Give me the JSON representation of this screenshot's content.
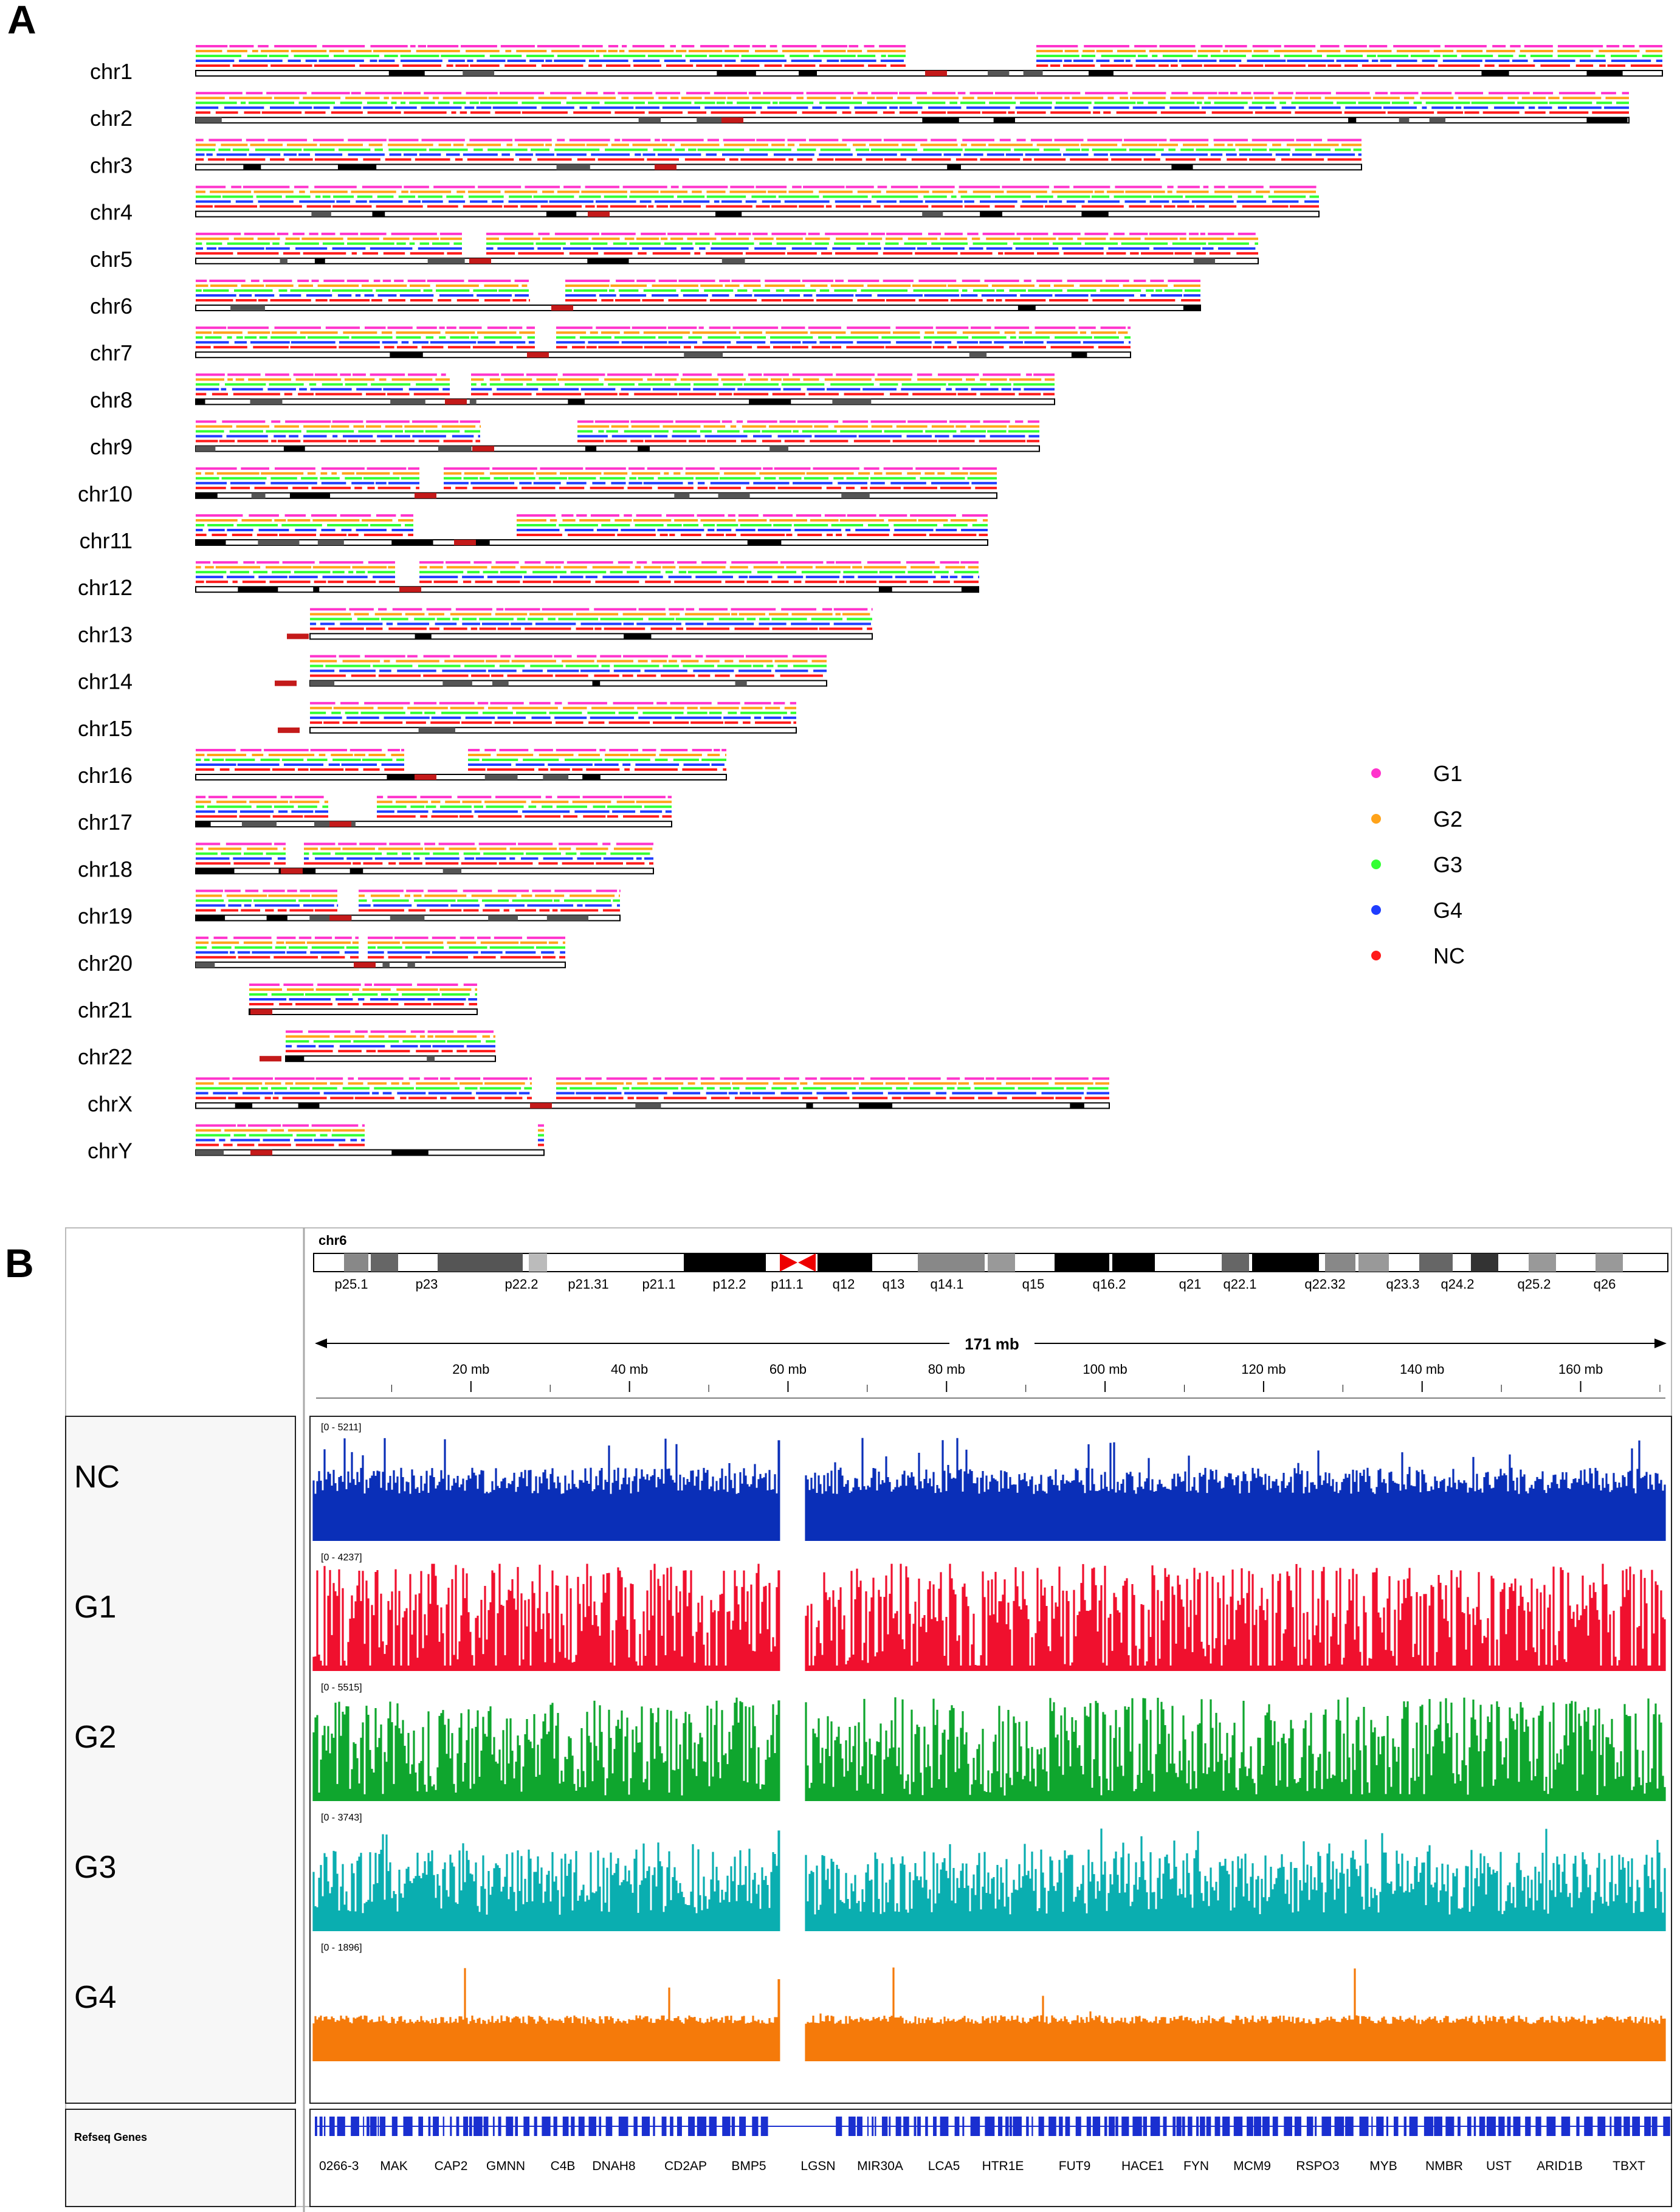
{
  "panels": {
    "a_label": "A",
    "b_label": "B"
  },
  "chart_data": [
    {
      "type": "ideogram",
      "chromosomes": [
        "chr1",
        "chr2",
        "chr3",
        "chr4",
        "chr5",
        "chr6",
        "chr7",
        "chr8",
        "chr9",
        "chr10",
        "chr11",
        "chr12",
        "chr13",
        "chr14",
        "chr15",
        "chr16",
        "chr17",
        "chr18",
        "chr19",
        "chr20",
        "chr21",
        "chr22",
        "chrX",
        "chrY"
      ],
      "legend": [
        {
          "name": "G1",
          "color": "#ff33cc"
        },
        {
          "name": "G2",
          "color": "#ffa31a"
        },
        {
          "name": "G3",
          "color": "#33ff33"
        },
        {
          "name": "G4",
          "color": "#1f3dff"
        },
        {
          "name": "NC",
          "color": "#ff1a1a"
        }
      ],
      "legend_position": "right"
    },
    {
      "type": "area",
      "chromosome_label": "chr6",
      "bands": [
        "p25.1",
        "p23",
        "p22.2",
        "p21.31",
        "p21.1",
        "p12.2",
        "p11.1",
        "q12",
        "q13",
        "q14.1",
        "q15",
        "q16.2",
        "q21",
        "q22.1",
        "q22.32",
        "q23.3",
        "q24.2",
        "q25.2",
        "q26"
      ],
      "span_label": "171 mb",
      "ticks": [
        "20 mb",
        "40 mb",
        "60 mb",
        "80 mb",
        "100 mb",
        "120 mb",
        "140 mb",
        "160 mb"
      ],
      "xlim": [
        0,
        171
      ],
      "series": [
        {
          "name": "NC",
          "range": "[0 - 5211]",
          "color": "#0a2fb8"
        },
        {
          "name": "G1",
          "range": "[0 - 4237]",
          "color": "#f0102e"
        },
        {
          "name": "G2",
          "range": "[0 - 5515]",
          "color": "#0fa62e"
        },
        {
          "name": "G3",
          "range": "[0 - 3743]",
          "color": "#0aaeb0"
        },
        {
          "name": "G4",
          "range": "[0 - 1896]",
          "color": "#f57a0a"
        }
      ],
      "gene_track_label": "Refseq Genes",
      "genes": [
        "0266-3",
        "MAK",
        "CAP2",
        "GMNN",
        "C4B",
        "DNAH8",
        "CD2AP",
        "BMP5",
        "LGSN",
        "MIR30A",
        "LCA5",
        "HTR1E",
        "FUT9",
        "HACE1",
        "FYN",
        "MCM9",
        "RSPO3",
        "MYB",
        "NMBR",
        "UST",
        "ARID1B",
        "TBXT"
      ]
    }
  ]
}
